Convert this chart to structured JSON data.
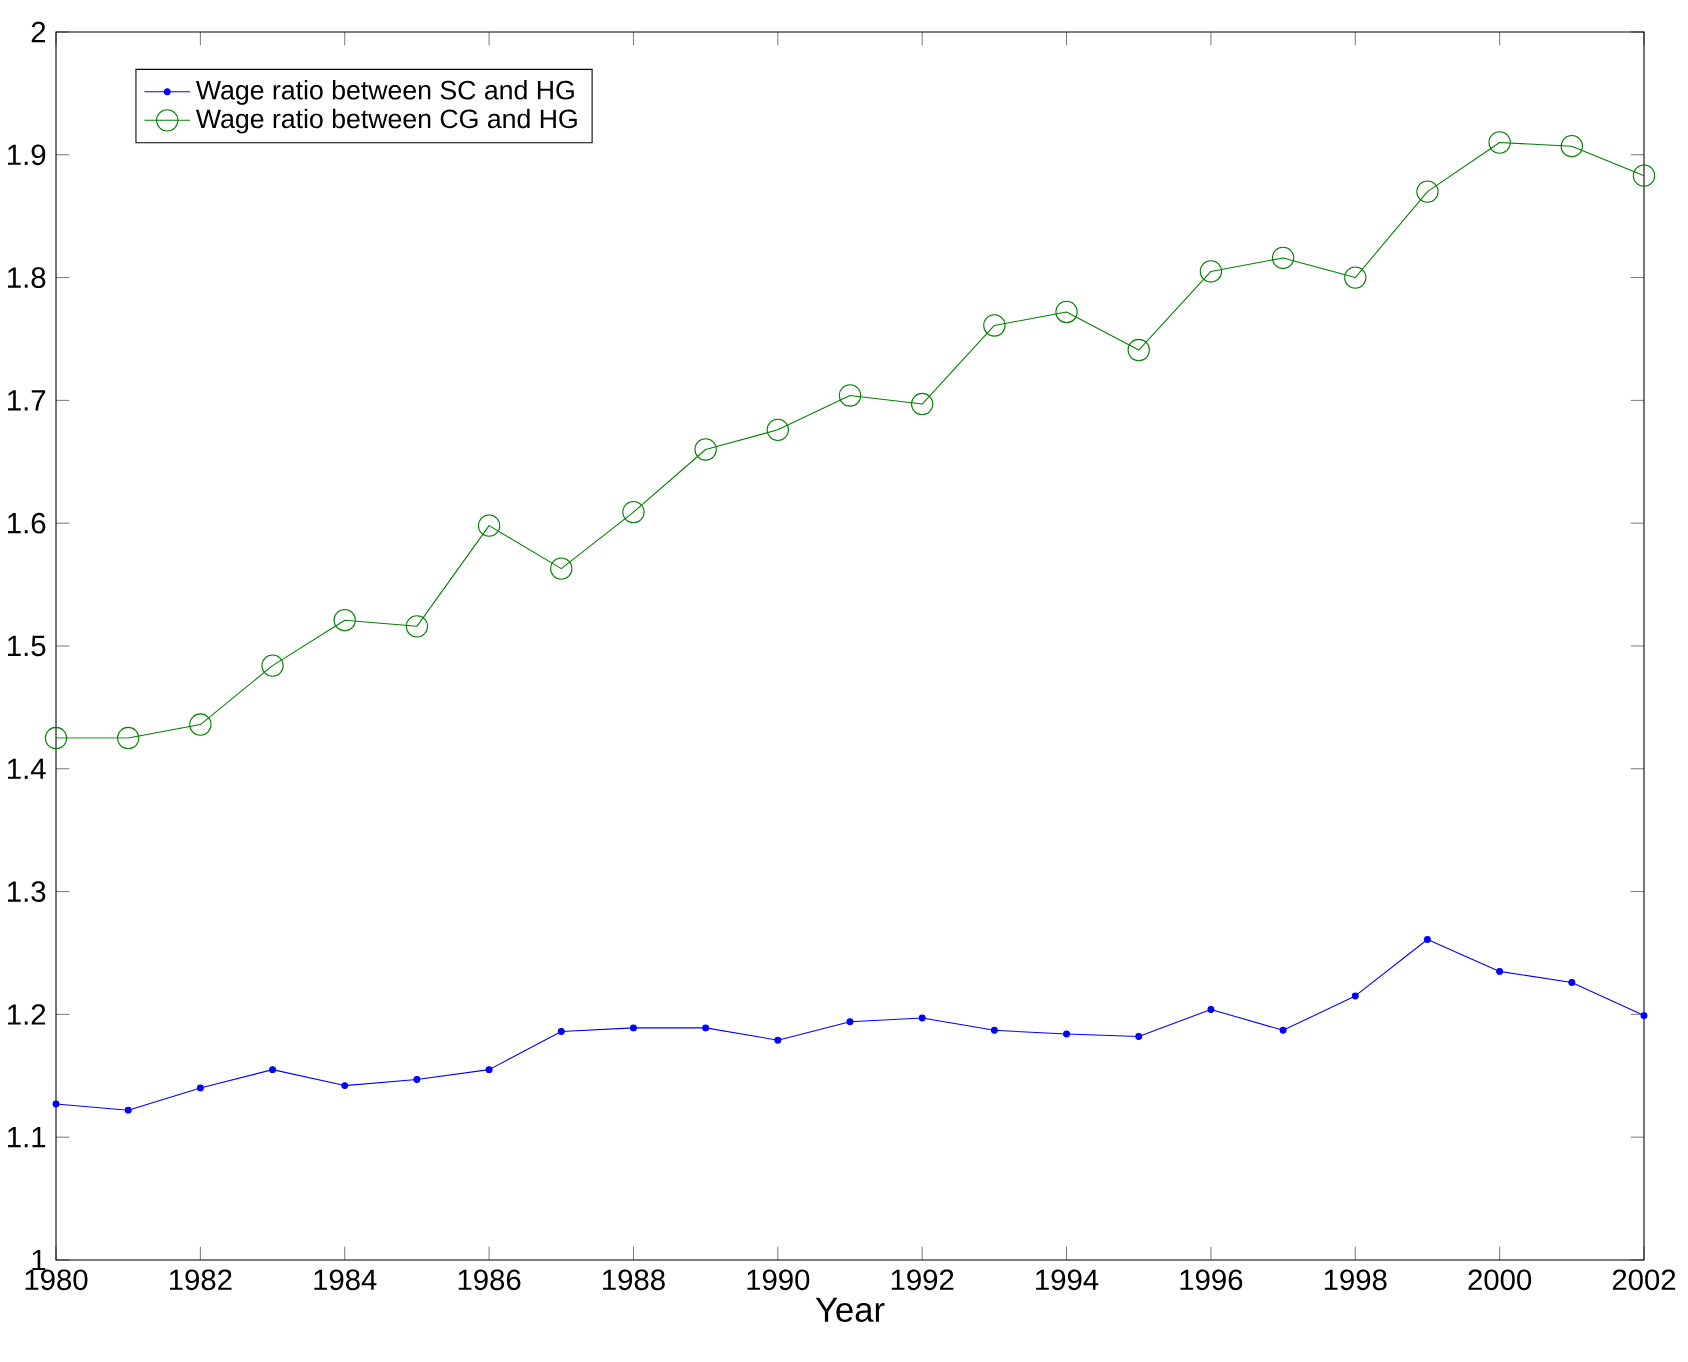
{
  "chart_data": {
    "type": "line",
    "xlabel": "Year",
    "x": [
      1980,
      1981,
      1982,
      1983,
      1984,
      1985,
      1986,
      1987,
      1988,
      1989,
      1990,
      1991,
      1992,
      1993,
      1994,
      1995,
      1996,
      1997,
      1998,
      1999,
      2000,
      2001,
      2002
    ],
    "series": [
      {
        "name": "Wage ratio between SC and HG",
        "color": "#0000ff",
        "marker": "circle",
        "values": [
          1.127,
          1.122,
          1.14,
          1.155,
          1.142,
          1.147,
          1.155,
          1.186,
          1.189,
          1.189,
          1.179,
          1.194,
          1.197,
          1.187,
          1.184,
          1.182,
          1.204,
          1.187,
          1.215,
          1.261,
          1.235,
          1.226,
          1.199
        ]
      },
      {
        "name": "Wage ratio between CG and HG",
        "color": "#008000",
        "marker": "circle",
        "values": [
          1.425,
          1.425,
          1.436,
          1.484,
          1.521,
          1.516,
          1.598,
          1.563,
          1.609,
          1.66,
          1.676,
          1.704,
          1.697,
          1.761,
          1.772,
          1.741,
          1.805,
          1.816,
          1.8,
          1.87,
          1.91,
          1.907,
          1.883
        ]
      }
    ],
    "xlim": [
      1980,
      2002
    ],
    "xticks": [
      1980,
      1982,
      1984,
      1986,
      1988,
      1990,
      1992,
      1994,
      1996,
      1998,
      2000,
      2002
    ],
    "ylim": [
      1,
      2
    ],
    "yticks": [
      1,
      1.1,
      1.2,
      1.3,
      1.4,
      1.5,
      1.6,
      1.7,
      1.8,
      1.9,
      2
    ],
    "grid": false,
    "legend": "top left"
  }
}
